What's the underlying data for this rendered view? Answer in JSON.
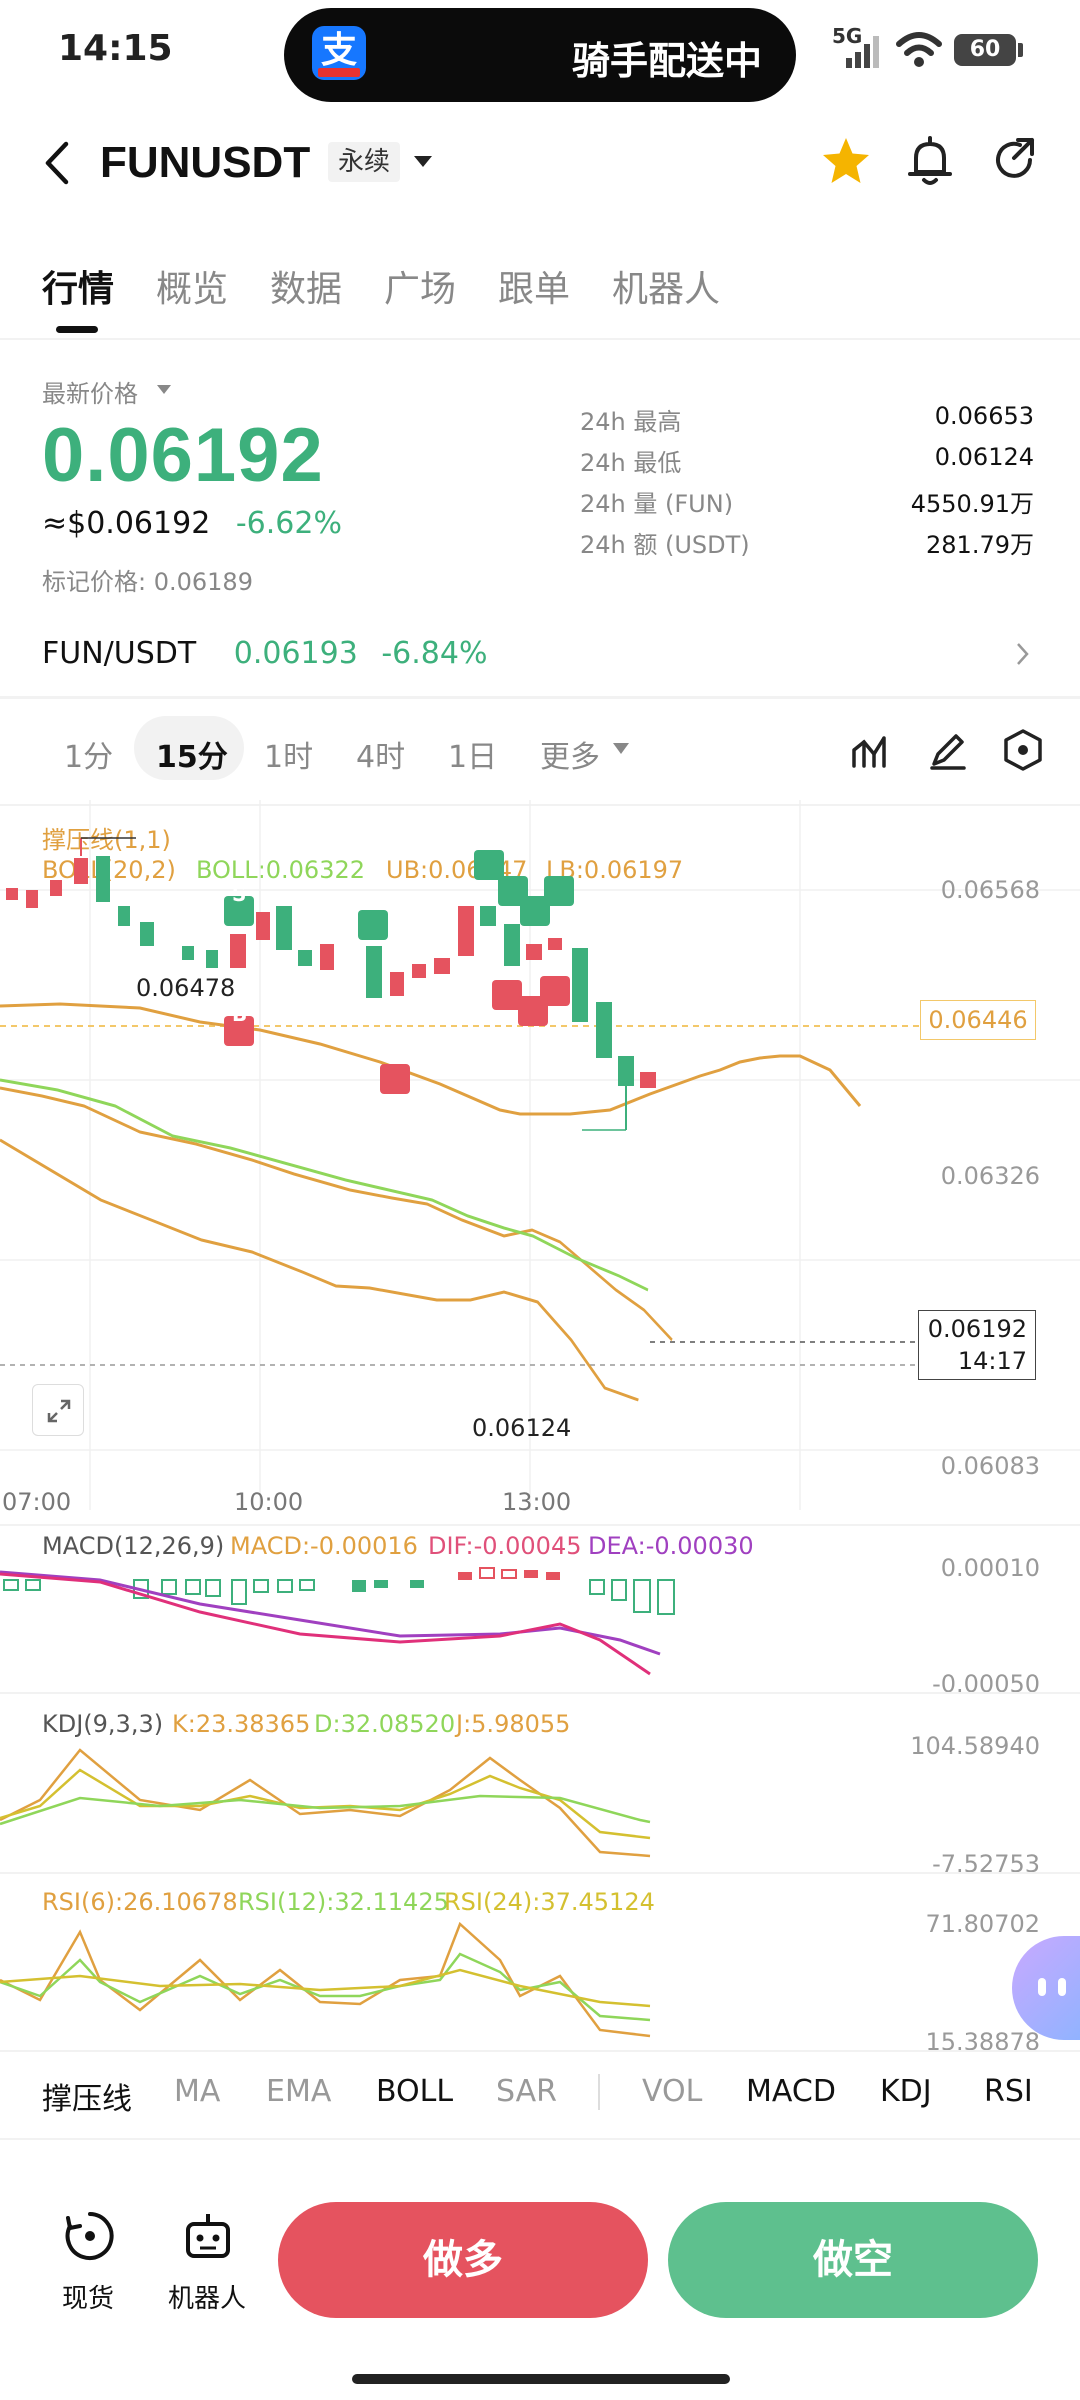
{
  "status_bar": {
    "time": "14:15",
    "island_text": "骑手配送中",
    "network": "5G",
    "battery": "60"
  },
  "header": {
    "symbol": "FUNUSDT",
    "contract_type": "永续"
  },
  "tabs": [
    "行情",
    "概览",
    "数据",
    "广场",
    "跟单",
    "机器人"
  ],
  "price": {
    "label": "最新价格",
    "last": "0.06192",
    "usd": "≈$0.06192",
    "change": "-6.62%",
    "mark": "标记价格: 0.06189"
  },
  "stats": [
    {
      "label": "24h  最高",
      "value": "0.06653"
    },
    {
      "label": "24h  最低",
      "value": "0.06124"
    },
    {
      "label": "24h  量 (FUN)",
      "value": "4550.91万"
    },
    {
      "label": "24h  额 (USDT)",
      "value": "281.79万"
    }
  ],
  "spot_pair": {
    "name": "FUN/USDT",
    "price": "0.06193",
    "change": "-6.84%"
  },
  "timeframes": [
    "1分",
    "15分",
    "1时",
    "4时",
    "1日",
    "更多"
  ],
  "active_timeframe": "15分",
  "main_chart": {
    "indicator_title": "撑压线(1,1)",
    "boll_params": "BOLL(20,2)",
    "boll": "BOLL:0.06322",
    "ub": "UB:0.06447",
    "lb": "LB:0.06197",
    "y_labels": [
      "0.06568",
      "0.06446",
      "0.06326",
      "0.06192",
      "0.06083"
    ],
    "current_time": "14:17",
    "high_marker": "0.06478",
    "low_marker": "0.06124",
    "x_labels": [
      "07:00",
      "10:00",
      "13:00"
    ],
    "buy_label": "B",
    "sell_label": "S"
  },
  "macd": {
    "title": "MACD(12,26,9)",
    "macd": "MACD:-0.00016",
    "dif": "DIF:-0.00045",
    "dea": "DEA:-0.00030",
    "y_top": "0.00010",
    "y_bottom": "-0.00050"
  },
  "kdj": {
    "title": "KDJ(9,3,3)",
    "k": "K:23.38365",
    "d": "D:32.08520",
    "j": "J:5.98055",
    "y_top": "104.58940",
    "y_bottom": "-7.52753"
  },
  "rsi": {
    "title": "RSI(6):26.10678",
    "rsi12": "RSI(12):32.11425",
    "rsi24": "RSI(24):37.45124",
    "y_top": "71.80702",
    "y_bottom": "15.38878"
  },
  "indicator_tabs": [
    "撑压线",
    "MA",
    "EMA",
    "BOLL",
    "SAR",
    "VOL",
    "MACD",
    "KDJ",
    "RSI"
  ],
  "bottom_bar": {
    "spot": "现货",
    "robot": "机器人",
    "long": "做多",
    "short": "做空"
  },
  "colors": {
    "up": "#3db07c",
    "down": "#e5535f",
    "boll_upper": "#e0a040",
    "boll_mid": "#8fd65a",
    "accent": "#f5b400"
  }
}
